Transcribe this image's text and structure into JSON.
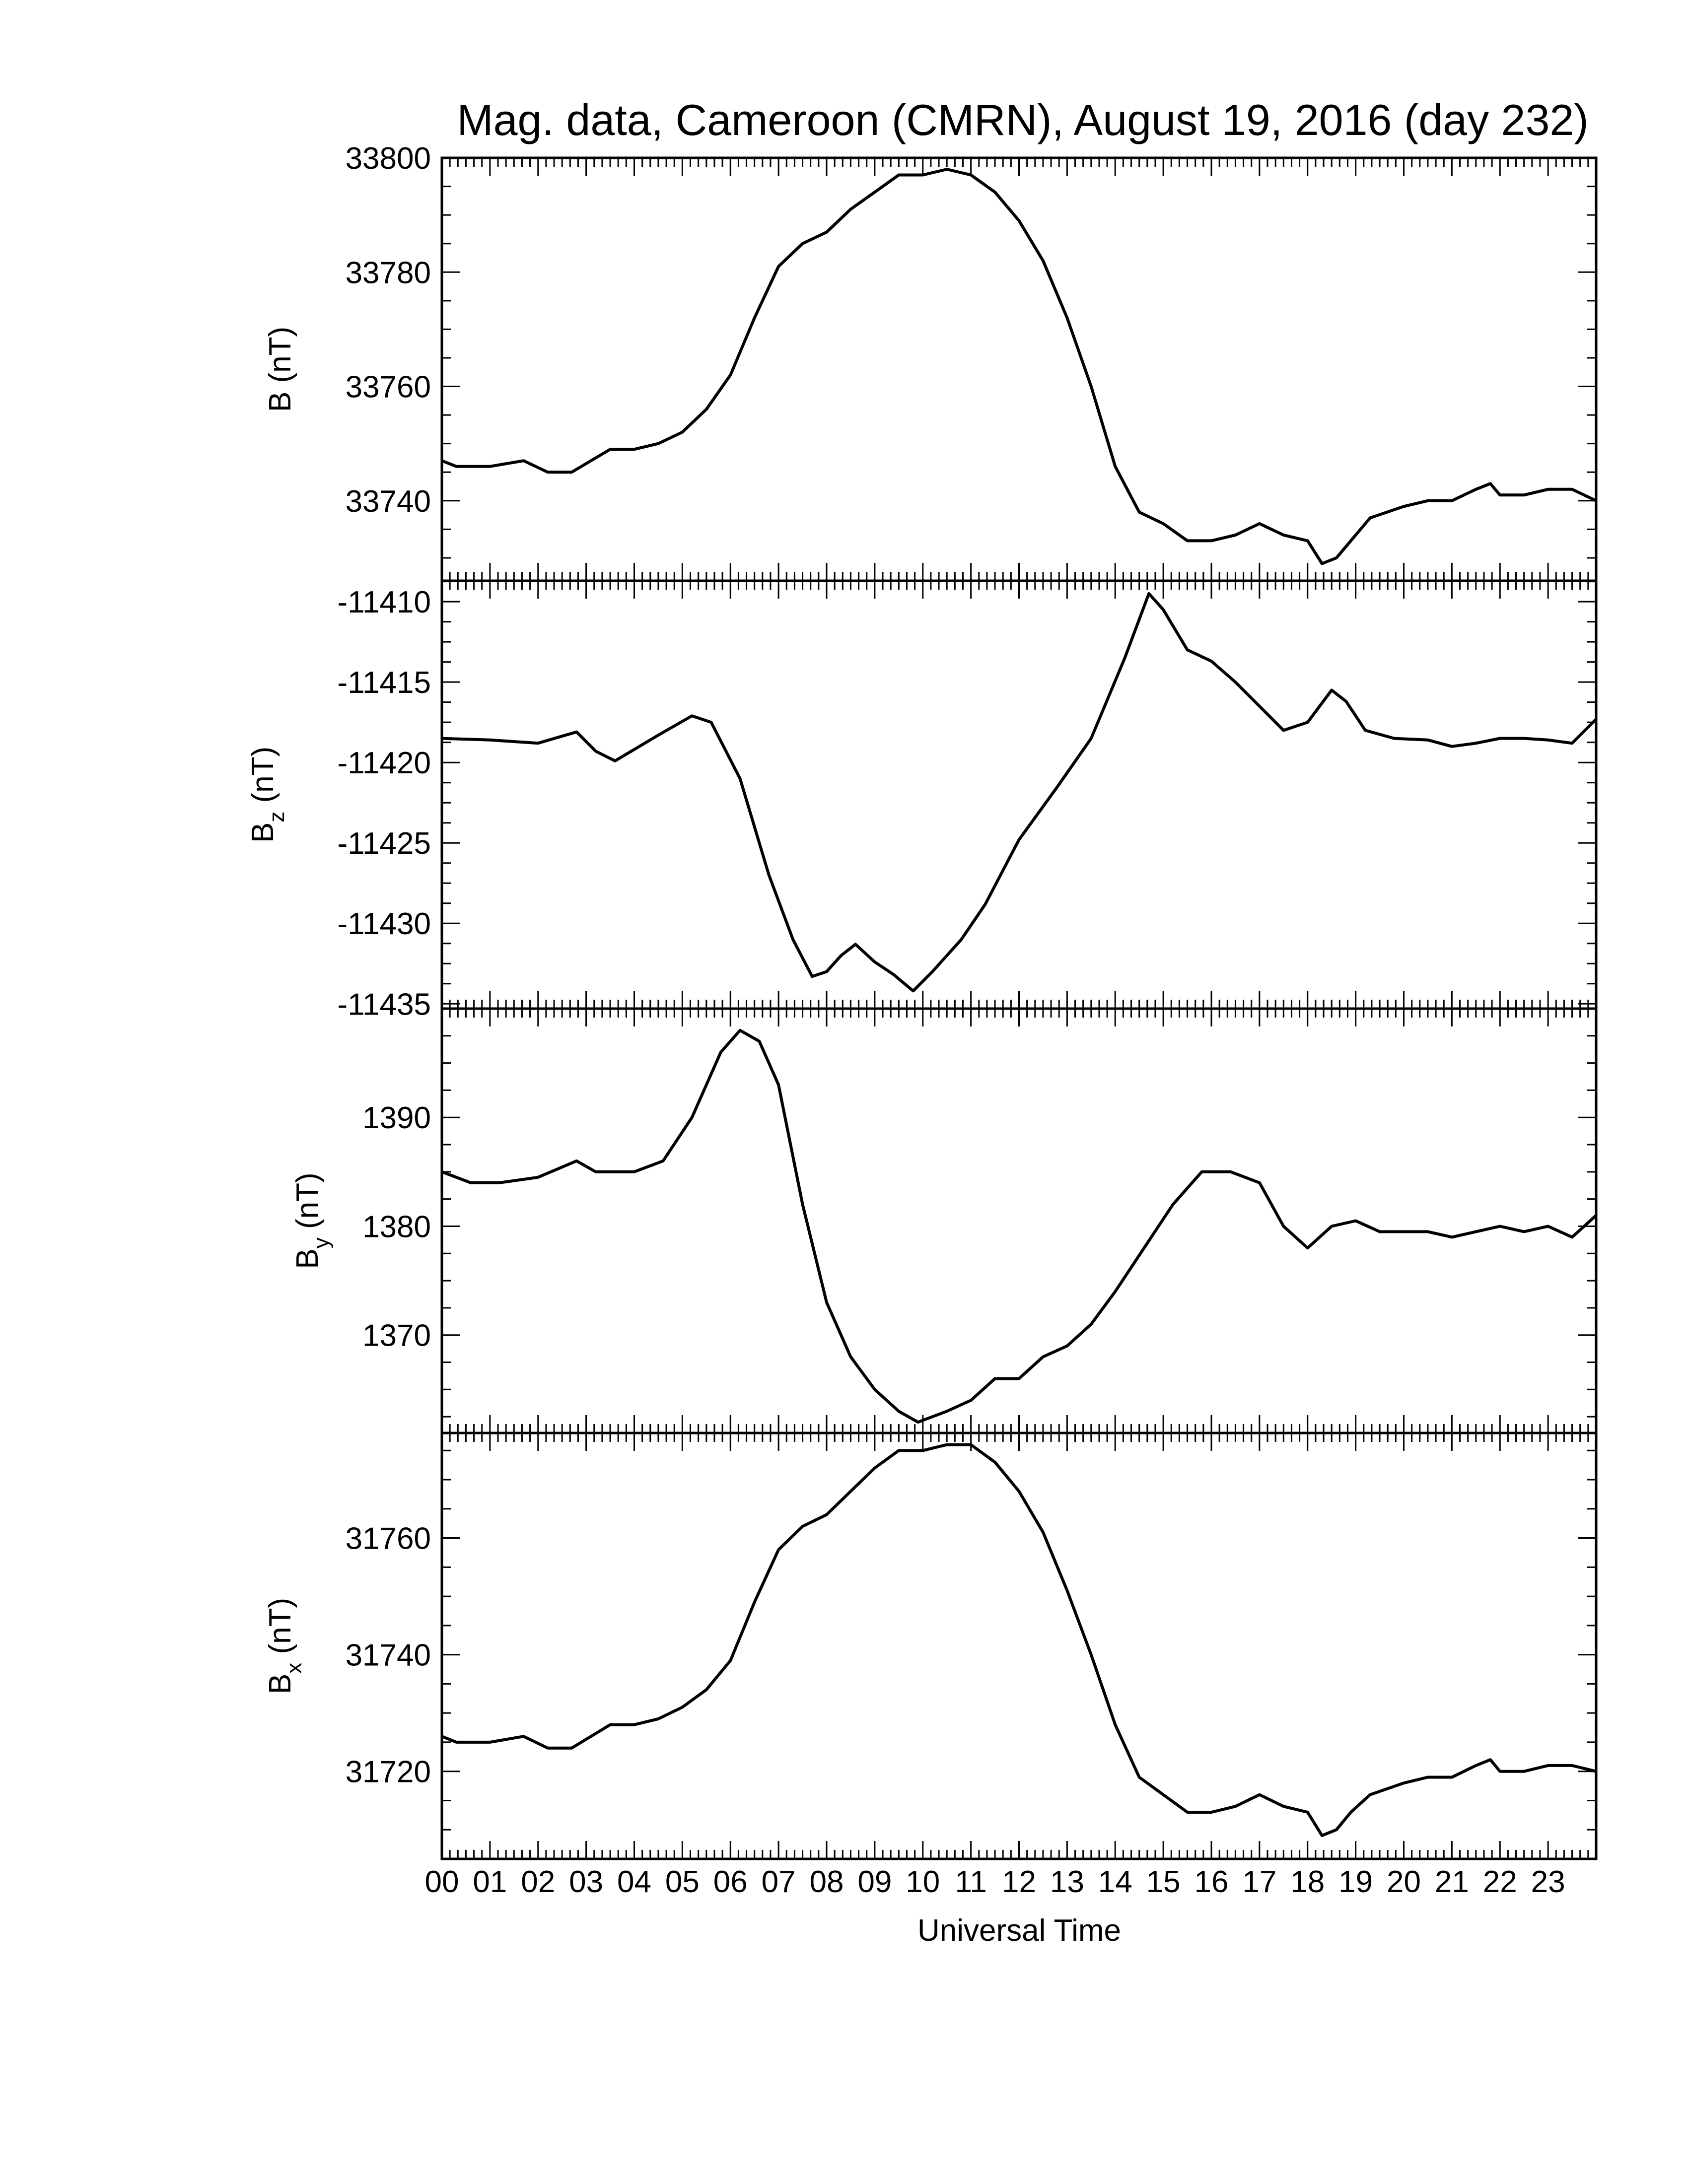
{
  "chart_data": {
    "type": "line",
    "title": "Mag. data, Cameroon (CMRN), August 19, 2016 (day 232)",
    "xlabel": "Universal Time",
    "x_tick_labels": [
      "00",
      "01",
      "02",
      "03",
      "04",
      "05",
      "06",
      "07",
      "08",
      "09",
      "10",
      "11",
      "12",
      "13",
      "14",
      "15",
      "16",
      "17",
      "18",
      "19",
      "20",
      "21",
      "22",
      "23"
    ],
    "xlim": [
      0,
      24
    ],
    "panels": [
      {
        "id": "B",
        "ylabel_main": "B",
        "ylabel_sub": "",
        "ylabel_unit": "(nT)",
        "ylim": [
          33726,
          33800
        ],
        "y_ticks": [
          33740,
          33760,
          33780,
          33800
        ],
        "y_tick_labels": [
          "33740",
          "33760",
          "33780",
          "33800"
        ],
        "x": [
          0,
          0.3,
          1,
          1.7,
          2.2,
          2.7,
          3.5,
          4,
          4.5,
          5,
          5.5,
          6,
          6.5,
          7,
          7.5,
          8,
          8.5,
          9,
          9.5,
          10,
          10.5,
          11,
          11.5,
          12,
          12.5,
          13,
          13.5,
          14,
          14.5,
          15,
          15.5,
          16,
          16.5,
          17,
          17.5,
          18,
          18.3,
          18.6,
          18.9,
          19.3,
          20,
          20.5,
          21,
          21.5,
          21.8,
          22,
          22.5,
          23,
          23.5,
          24
        ],
        "values": [
          33747,
          33746,
          33746,
          33747,
          33745,
          33745,
          33749,
          33749,
          33750,
          33752,
          33756,
          33762,
          33772,
          33781,
          33785,
          33787,
          33791,
          33794,
          33797,
          33797,
          33798,
          33797,
          33794,
          33789,
          33782,
          33772,
          33760,
          33746,
          33738,
          33736,
          33733,
          33733,
          33734,
          33736,
          33734,
          33733,
          33729,
          33730,
          33733,
          33737,
          33739,
          33740,
          33740,
          33742,
          33743,
          33741,
          33741,
          33742,
          33742,
          33740
        ]
      },
      {
        "id": "Bz",
        "ylabel_main": "B",
        "ylabel_sub": "z",
        "ylabel_unit": "(nT)",
        "ylim": [
          -11435.3,
          -11408.7
        ],
        "y_ticks": [
          -11410,
          -11415,
          -11420,
          -11425,
          -11430,
          -11435
        ],
        "y_tick_labels": [
          "-11410",
          "-11415",
          "-11420",
          "-11425",
          "-11430",
          "-11435"
        ],
        "x": [
          0,
          1,
          2,
          2.8,
          3.2,
          3.6,
          4.5,
          5.2,
          5.6,
          6.2,
          6.8,
          7.3,
          7.7,
          8,
          8.3,
          8.6,
          9,
          9.4,
          9.8,
          10.2,
          10.8,
          11.3,
          12,
          12.8,
          13.5,
          14.2,
          14.7,
          15,
          15.5,
          16,
          16.5,
          17,
          17.5,
          18,
          18.5,
          18.8,
          19.2,
          19.8,
          20.5,
          21,
          21.5,
          22,
          22.5,
          23,
          23.5,
          24
        ],
        "values": [
          -11418.5,
          -11418.6,
          -11418.8,
          -11418.1,
          -11419.3,
          -11419.9,
          -11418.3,
          -11417.1,
          -11417.5,
          -11421,
          -11427,
          -11431,
          -11433.3,
          -11433,
          -11432,
          -11431.3,
          -11432.4,
          -11433.2,
          -11434.2,
          -11433,
          -11431,
          -11428.8,
          -11424.8,
          -11421.5,
          -11418.5,
          -11413.5,
          -11409.5,
          -11410.5,
          -11413,
          -11413.7,
          -11415,
          -11416.5,
          -11418,
          -11417.5,
          -11415.5,
          -11416.2,
          -11418,
          -11418.5,
          -11418.6,
          -11419,
          -11418.8,
          -11418.5,
          -11418.5,
          -11418.6,
          -11418.8,
          -11417.3
        ]
      },
      {
        "id": "By",
        "ylabel_main": "B",
        "ylabel_sub": "y",
        "ylabel_unit": "(nT)",
        "ylim": [
          1361,
          1400
        ],
        "y_ticks": [
          1370,
          1380,
          1390
        ],
        "y_tick_labels": [
          "1370",
          "1380",
          "1390"
        ],
        "x": [
          0,
          0.6,
          1.2,
          2,
          2.8,
          3.2,
          4,
          4.6,
          5.2,
          5.8,
          6.2,
          6.6,
          7,
          7.5,
          8,
          8.5,
          9,
          9.5,
          9.9,
          10.5,
          11,
          11.5,
          12,
          12.5,
          13,
          13.5,
          14,
          14.6,
          15.2,
          15.8,
          16.4,
          17,
          17.5,
          18,
          18.5,
          19,
          19.5,
          20,
          20.5,
          21,
          21.5,
          22,
          22.5,
          23,
          23.5,
          24
        ],
        "values": [
          1385,
          1384,
          1384,
          1384.5,
          1386,
          1385,
          1385,
          1386,
          1390,
          1396,
          1398,
          1397,
          1393,
          1382,
          1373,
          1368,
          1365,
          1363,
          1362,
          1363,
          1364,
          1366,
          1366,
          1368,
          1369,
          1371,
          1374,
          1378,
          1382,
          1385,
          1385,
          1384,
          1380,
          1378,
          1380,
          1380.5,
          1379.5,
          1379.5,
          1379.5,
          1379,
          1379.5,
          1380,
          1379.5,
          1380,
          1379,
          1381
        ]
      },
      {
        "id": "Bx",
        "ylabel_main": "B",
        "ylabel_sub": "x",
        "ylabel_unit": "(nT)",
        "ylim": [
          31705,
          31778
        ],
        "y_ticks": [
          31720,
          31740,
          31760
        ],
        "y_tick_labels": [
          "31720",
          "31740",
          "31760"
        ],
        "x": [
          0,
          0.3,
          1,
          1.7,
          2.2,
          2.7,
          3.5,
          4,
          4.5,
          5,
          5.5,
          6,
          6.5,
          7,
          7.5,
          8,
          8.5,
          9,
          9.5,
          10,
          10.5,
          11,
          11.5,
          12,
          12.5,
          13,
          13.5,
          14,
          14.5,
          15,
          15.5,
          16,
          16.5,
          17,
          17.5,
          18,
          18.3,
          18.6,
          18.9,
          19.3,
          20,
          20.5,
          21,
          21.5,
          21.8,
          22,
          22.5,
          23,
          23.5,
          24
        ],
        "values": [
          31726,
          31725,
          31725,
          31726,
          31724,
          31724,
          31728,
          31728,
          31729,
          31731,
          31734,
          31739,
          31749,
          31758,
          31762,
          31764,
          31768,
          31772,
          31775,
          31775,
          31776,
          31776,
          31773,
          31768,
          31761,
          31751,
          31740,
          31728,
          31719,
          31716,
          31713,
          31713,
          31714,
          31716,
          31714,
          31713,
          31709,
          31710,
          31713,
          31716,
          31718,
          31719,
          31719,
          31721,
          31722,
          31720,
          31720,
          31721,
          31721,
          31720
        ]
      }
    ]
  }
}
